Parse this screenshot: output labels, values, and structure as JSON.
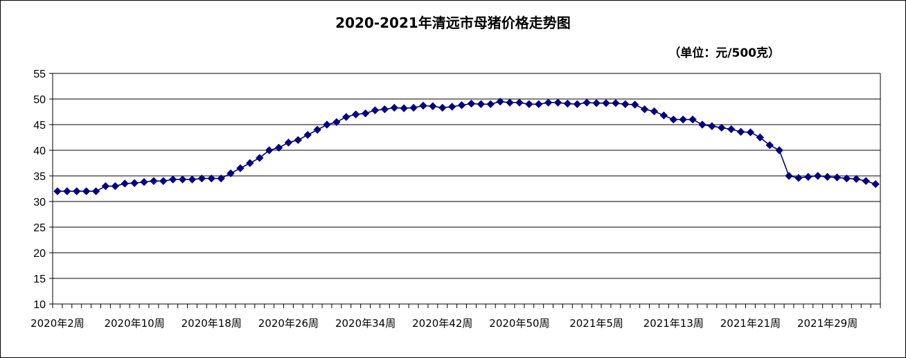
{
  "chart_data": {
    "type": "line",
    "title": "2020-2021年清远市母猪价格走势图",
    "unit": "（单位：元/500克）",
    "xlabel": "",
    "ylabel": "",
    "ylim": [
      10,
      55
    ],
    "y_ticks": [
      10,
      15,
      20,
      25,
      30,
      35,
      40,
      45,
      50,
      55
    ],
    "grid": true,
    "legend": "none",
    "x_tick_labels": [
      "2020年2周",
      "2020年10周",
      "2020年18周",
      "2020年26周",
      "2020年34周",
      "2020年42周",
      "2020年50周",
      "2021年5周",
      "2021年13周",
      "2021年21周",
      "2021年29周"
    ],
    "x_tick_label_every": 8,
    "series": [
      {
        "color": "#000080",
        "marker": "diamond",
        "values": [
          32.0,
          32.0,
          32.0,
          32.0,
          32.0,
          33.0,
          33.0,
          33.5,
          33.6,
          33.8,
          34.0,
          34.0,
          34.3,
          34.3,
          34.3,
          34.5,
          34.5,
          34.5,
          35.5,
          36.5,
          37.5,
          38.5,
          40.0,
          40.5,
          41.5,
          42.0,
          43.0,
          44.0,
          45.0,
          45.5,
          46.5,
          47.0,
          47.2,
          47.8,
          48.0,
          48.3,
          48.2,
          48.3,
          48.7,
          48.6,
          48.3,
          48.5,
          48.8,
          49.1,
          49.0,
          49.0,
          49.5,
          49.3,
          49.3,
          49.0,
          49.0,
          49.3,
          49.3,
          49.1,
          49.0,
          49.3,
          49.2,
          49.2,
          49.2,
          49.0,
          48.9,
          48.0,
          47.6,
          46.8,
          46.0,
          46.0,
          46.0,
          45.0,
          44.7,
          44.4,
          44.1,
          43.6,
          43.5,
          42.5,
          41.0,
          40.0,
          35.0,
          34.6,
          34.8,
          35.0,
          34.8,
          34.7,
          34.5,
          34.4,
          34.0,
          33.4
        ]
      }
    ]
  }
}
